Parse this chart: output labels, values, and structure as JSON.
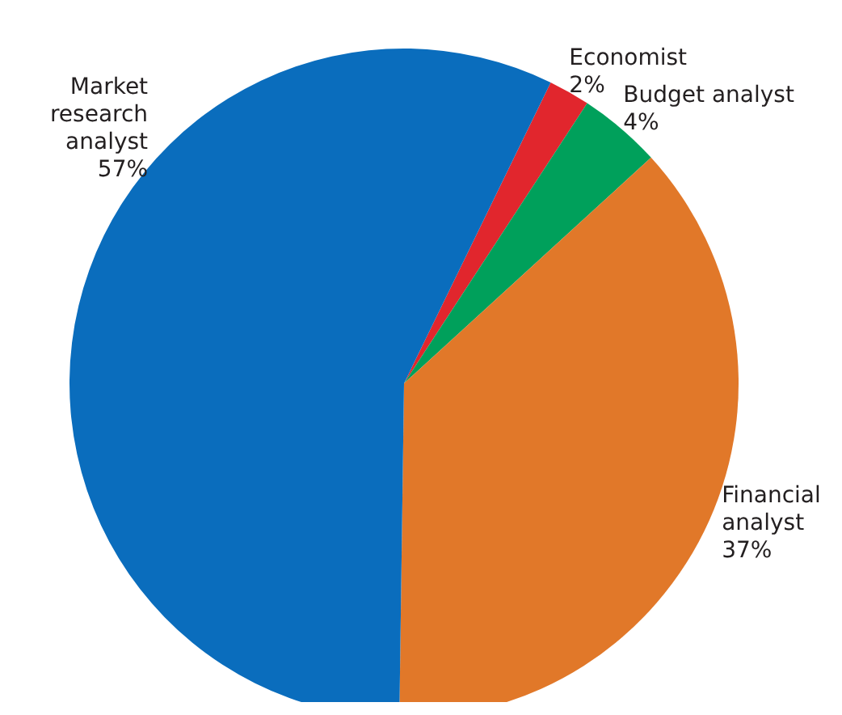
{
  "chart_data": {
    "type": "pie",
    "categories": [
      "Economist",
      "Budget analyst",
      "Financial analyst",
      "Market research analyst"
    ],
    "values": [
      2,
      4,
      37,
      57
    ],
    "colors": [
      "#e1262d",
      "#00a05b",
      "#e17829",
      "#0a6dbd"
    ],
    "value_labels": [
      "2%",
      "4%",
      "37%",
      "57%"
    ]
  }
}
